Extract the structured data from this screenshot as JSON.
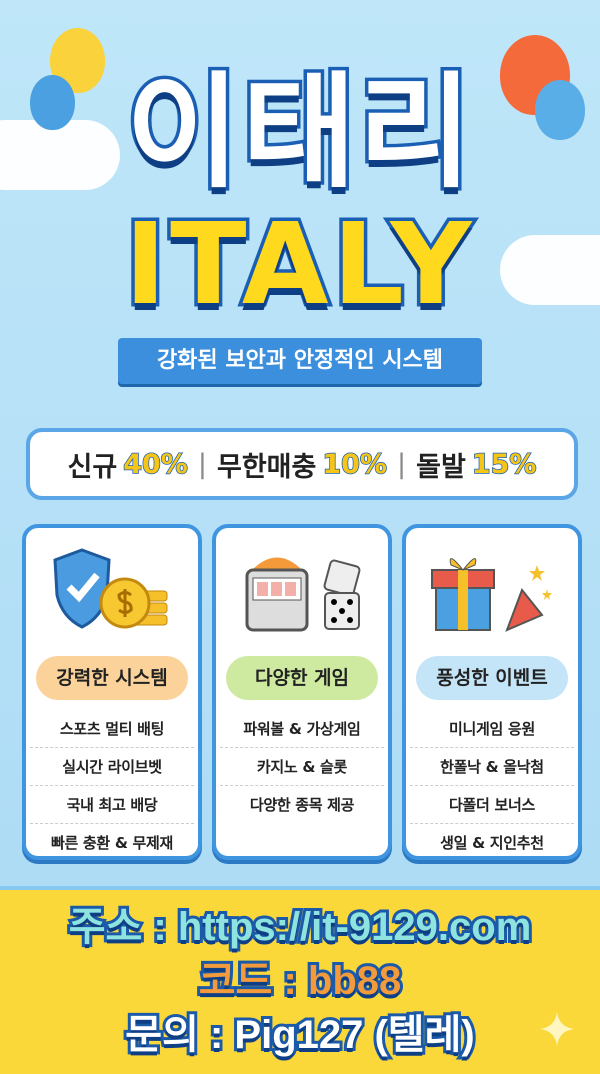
{
  "header": {
    "title_korean": "이태리",
    "title_english": "ITALY",
    "subtitle": "강화된 보안과 안정적인 시스템"
  },
  "bonus": {
    "items": [
      {
        "label": "신규",
        "value": "40%"
      },
      {
        "label": "무한매충",
        "value": "10%"
      },
      {
        "label": "돌발",
        "value": "15%"
      }
    ],
    "separator": "|"
  },
  "cards": [
    {
      "title": "강력한 시스템",
      "icon": "shield-coins-icon",
      "pill_color": "#fbd39a",
      "items": [
        "스포츠 멀티 배팅",
        "실시간 라이브벳",
        "국내 최고 배당",
        "빠른 충환 & 무제재"
      ]
    },
    {
      "title": "다양한 게임",
      "icon": "slot-machine-dice-icon",
      "pill_color": "#cdeaa0",
      "items": [
        "파워볼 & 가상게임",
        "카지노 & 슬롯",
        "다양한 종목 제공"
      ]
    },
    {
      "title": "풍성한 이벤트",
      "icon": "gift-party-icon",
      "pill_color": "#c4e4f7",
      "items": [
        "미니게임 응원",
        "한폴낙 & 올낙첨",
        "다폴더 보너스",
        "생일 & 지인추천"
      ]
    }
  ],
  "contact": {
    "address": "주소 : https://it-9129.com",
    "code": "코드 : bb88",
    "inquiry": "문의 : Pig127 (텔레)"
  },
  "colors": {
    "sky": "#bfe6f9",
    "accent_blue": "#3b8fdc",
    "yellow": "#fbd83a",
    "address_color": "#8fe3df",
    "code_color": "#f39a3b"
  }
}
